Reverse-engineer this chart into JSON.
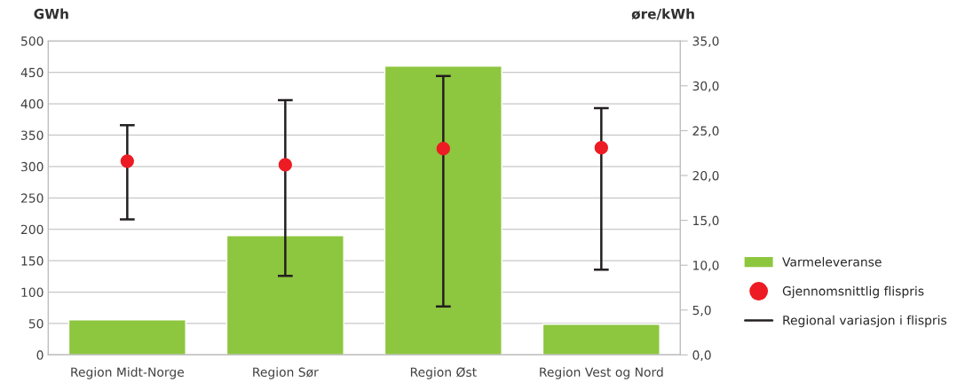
{
  "chart_data": {
    "type": "bar",
    "categories": [
      "Region Midt-Norge",
      "Region Sør",
      "Region Øst",
      "Region Vest og Nord"
    ],
    "ylabel": "GWh",
    "y2label": "øre/kWh",
    "series": [
      {
        "name": "Varmeleveranse",
        "color": "#8dc63f",
        "values": [
          56,
          190,
          460,
          49
        ]
      },
      {
        "name": "Gjennomsnittlig flispris",
        "type": "scatter",
        "axis": "y2",
        "color": "#ed1c24",
        "marker": "circle",
        "values": [
          21.6,
          21.2,
          23.0,
          23.1
        ],
        "errors": [
          [
            15.1,
            25.6
          ],
          [
            8.8,
            28.4
          ],
          [
            5.4,
            31.1
          ],
          [
            9.5,
            27.5
          ]
        ]
      }
    ],
    "annotations": [
      "Regional variasjon i flispris"
    ],
    "ylim": [
      0,
      500
    ],
    "yticks": [
      0,
      50,
      100,
      150,
      200,
      250,
      300,
      350,
      400,
      450,
      500
    ],
    "y2lim": [
      0,
      35
    ],
    "y2ticks": [
      {
        "value": 0,
        "label": "0,0"
      },
      {
        "value": 5,
        "label": "5,0"
      },
      {
        "value": 10,
        "label": "10,0"
      },
      {
        "value": 15,
        "label": "15,0"
      },
      {
        "value": 20,
        "label": "20,0"
      },
      {
        "value": 25,
        "label": "25,0"
      },
      {
        "value": 30,
        "label": "30,0"
      },
      {
        "value": 35,
        "label": "35,0"
      }
    ],
    "grid": "y",
    "legend": "right"
  }
}
